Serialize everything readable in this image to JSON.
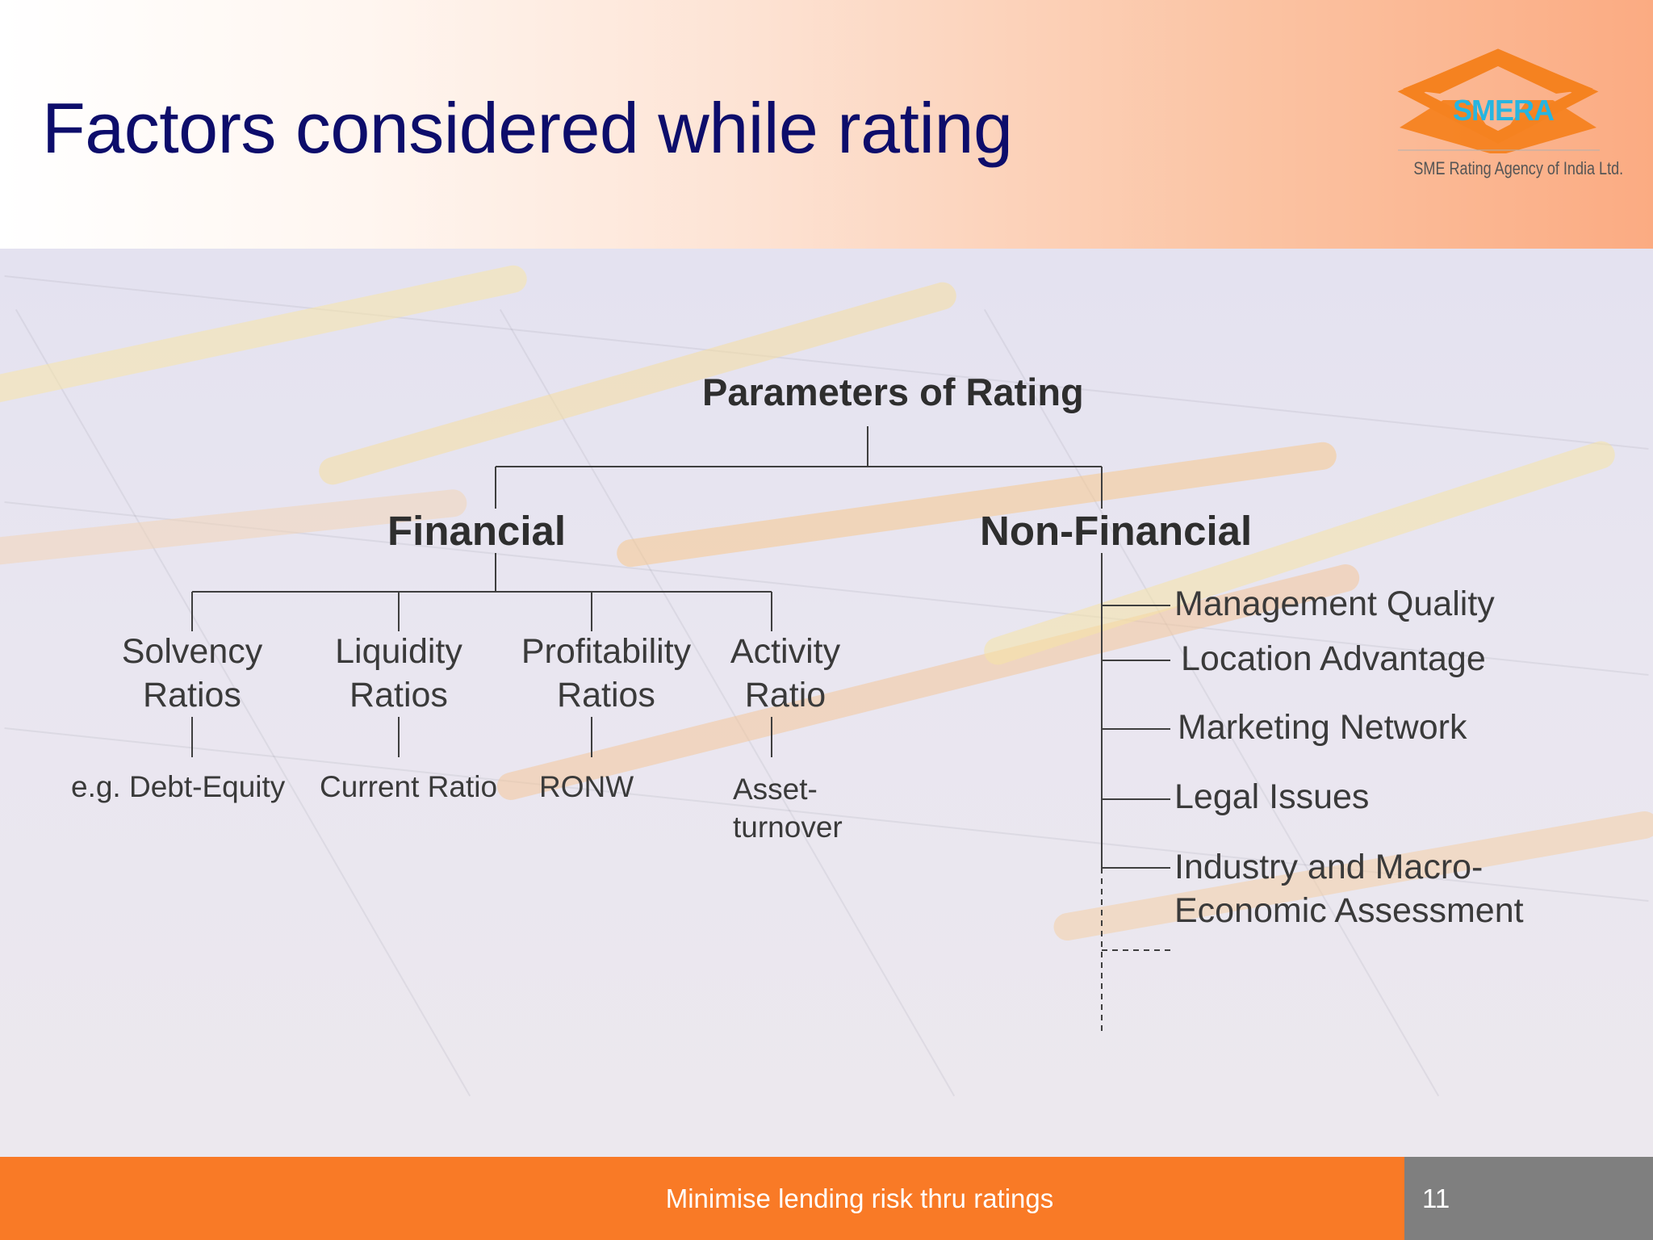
{
  "slide": {
    "title": "Factors considered while rating",
    "logo": {
      "brand": "SMERA",
      "tagline": "SME Rating Agency of India Ltd."
    },
    "footer": {
      "text": "Minimise lending risk thru ratings",
      "page_number": "11"
    }
  },
  "diagram": {
    "root": "Parameters of Rating",
    "financial": {
      "label": "Financial",
      "ratios": [
        {
          "line1": "Solvency",
          "line2": "Ratios",
          "example": "e.g. Debt-Equity"
        },
        {
          "line1": "Liquidity",
          "line2": "Ratios",
          "example": "Current Ratio"
        },
        {
          "line1": "Profitability",
          "line2": "Ratios",
          "example": "RONW"
        },
        {
          "line1": "Activity",
          "line2": "Ratio",
          "example_line1": "Asset-",
          "example_line2": "turnover"
        }
      ]
    },
    "non_financial": {
      "label": "Non-Financial",
      "items": [
        "Management Quality",
        "Location Advantage",
        "Marketing Network",
        "Legal Issues"
      ],
      "last_item": {
        "line1": "Industry and Macro-",
        "line2": "Economic Assessment"
      }
    }
  },
  "colors": {
    "title": "#0d0d6b",
    "footer_bg": "#f97a26",
    "page_box_bg": "#7f7f7f",
    "logo_orange": "#f58220",
    "logo_blue": "#27b5e0"
  }
}
